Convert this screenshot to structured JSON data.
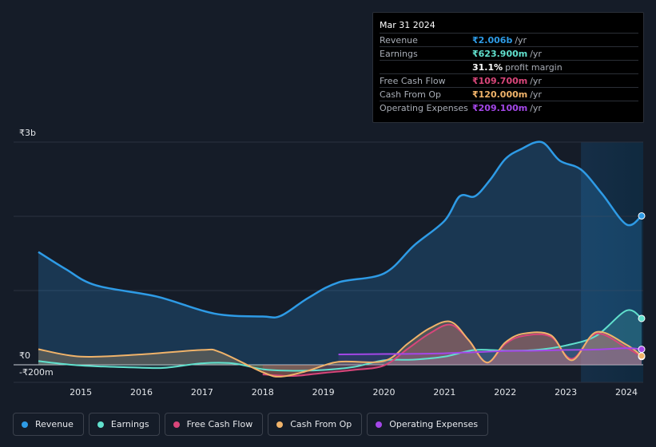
{
  "tooltip": {
    "date": "Mar 31 2024",
    "rows": [
      {
        "label": "Revenue",
        "value": "₹2.006b",
        "unit": "/yr",
        "color": "#2e9be6"
      },
      {
        "label": "Earnings",
        "value": "₹623.900m",
        "unit": "/yr",
        "color": "#61e0cd"
      },
      {
        "label": "",
        "value": "31.1%",
        "unit": "profit margin",
        "color": "#ffffff"
      },
      {
        "label": "Free Cash Flow",
        "value": "₹109.700m",
        "unit": "/yr",
        "color": "#d9467a"
      },
      {
        "label": "Cash From Op",
        "value": "₹120.000m",
        "unit": "/yr",
        "color": "#f0b36a"
      },
      {
        "label": "Operating Expenses",
        "value": "₹209.100m",
        "unit": "/yr",
        "color": "#a447e8"
      }
    ]
  },
  "legend": [
    {
      "label": "Revenue",
      "color": "#2e9be6"
    },
    {
      "label": "Earnings",
      "color": "#61e0cd"
    },
    {
      "label": "Free Cash Flow",
      "color": "#d9467a"
    },
    {
      "label": "Cash From Op",
      "color": "#f0b36a"
    },
    {
      "label": "Operating Expenses",
      "color": "#a447e8"
    }
  ],
  "chart_data": {
    "type": "area",
    "y_tick_labels": [
      {
        "value": 3000,
        "label": "₹3b"
      },
      {
        "value": 0,
        "label": "₹0"
      },
      {
        "value": -200,
        "label": "-₹200m"
      }
    ],
    "ylim": [
      -200,
      3000
    ],
    "xlim": [
      2014.3,
      2024.25
    ],
    "x_tick_labels": [
      "2015",
      "2016",
      "2017",
      "2018",
      "2019",
      "2020",
      "2021",
      "2022",
      "2023",
      "2024"
    ],
    "x_ticks": [
      2015,
      2016,
      2017,
      2018,
      2019,
      2020,
      2021,
      2022,
      2023,
      2024
    ],
    "highlight_from": 2023.25,
    "grid": true,
    "series": [
      {
        "name": "Revenue",
        "color": "#2e9be6",
        "x": [
          2014.3,
          2014.75,
          2015.25,
          2016.25,
          2017.2,
          2018.0,
          2018.3,
          2018.75,
          2019.25,
          2020.0,
          2020.5,
          2021.0,
          2021.25,
          2021.5,
          2021.75,
          2022.0,
          2022.25,
          2022.6,
          2022.9,
          2023.25,
          2023.6,
          2024.0,
          2024.25
        ],
        "values": [
          1520,
          1290,
          1070,
          920,
          690,
          650,
          660,
          900,
          1110,
          1230,
          1610,
          1940,
          2270,
          2270,
          2490,
          2770,
          2900,
          3000,
          2750,
          2630,
          2300,
          1890,
          2006
        ]
      },
      {
        "name": "Earnings",
        "color": "#61e0cd",
        "x": [
          2014.3,
          2015.0,
          2016.0,
          2016.4,
          2017.0,
          2017.5,
          2018.0,
          2018.5,
          2019.0,
          2019.5,
          2020.0,
          2020.5,
          2021.0,
          2021.5,
          2022.0,
          2022.5,
          2023.0,
          2023.5,
          2024.0,
          2024.25
        ],
        "values": [
          50,
          -10,
          -40,
          -40,
          20,
          20,
          -60,
          -80,
          -70,
          -30,
          60,
          70,
          110,
          200,
          190,
          200,
          260,
          390,
          730,
          624
        ]
      },
      {
        "name": "Free Cash Flow",
        "color": "#d9467a",
        "x": [
          2018.0,
          2018.5,
          2019.0,
          2019.5,
          2020.0,
          2020.4,
          2020.75,
          2021.1,
          2021.4,
          2021.7,
          2022.0,
          2022.3,
          2022.75,
          2023.1,
          2023.5,
          2024.0,
          2024.25
        ],
        "values": [
          -130,
          -150,
          -110,
          -70,
          -10,
          220,
          420,
          540,
          330,
          30,
          280,
          390,
          380,
          80,
          420,
          230,
          110
        ]
      },
      {
        "name": "Cash From Op",
        "color": "#f0b36a",
        "x": [
          2014.3,
          2015.0,
          2016.0,
          2017.0,
          2017.3,
          2018.0,
          2018.3,
          2018.75,
          2019.25,
          2020.0,
          2020.4,
          2020.75,
          2021.1,
          2021.4,
          2021.7,
          2022.0,
          2022.3,
          2022.75,
          2023.1,
          2023.5,
          2024.0,
          2024.25
        ],
        "values": [
          210,
          110,
          140,
          200,
          170,
          -100,
          -160,
          -80,
          40,
          50,
          290,
          490,
          580,
          330,
          30,
          300,
          420,
          400,
          60,
          440,
          270,
          120
        ]
      },
      {
        "name": "Operating Expenses",
        "color": "#a447e8",
        "x": [
          2019.25,
          2020.0,
          2020.5,
          2021.0,
          2021.5,
          2022.0,
          2022.5,
          2023.0,
          2023.5,
          2024.0,
          2024.25
        ],
        "values": [
          140,
          145,
          148,
          155,
          170,
          185,
          190,
          200,
          205,
          225,
          209
        ]
      }
    ]
  }
}
